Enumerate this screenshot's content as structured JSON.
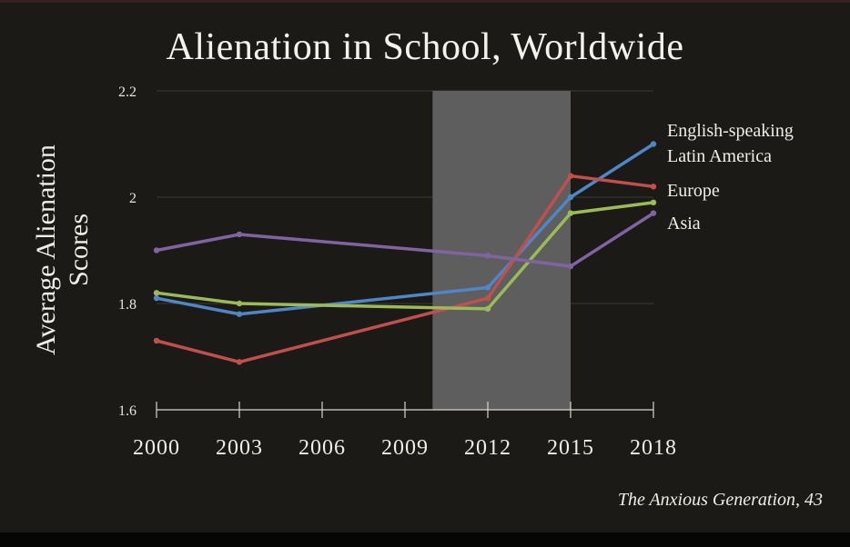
{
  "chart_data": {
    "type": "line",
    "title": "Alienation in School, Worldwide",
    "ylabel": "Average Alienation Scores",
    "xlabel": "",
    "x": [
      2000,
      2003,
      2006,
      2009,
      2012,
      2015,
      2018
    ],
    "x_tick_labels": [
      "2000",
      "2003",
      "2006",
      "2009",
      "2012",
      "2015",
      "2018"
    ],
    "ylim": [
      1.6,
      2.2
    ],
    "y_ticks": [
      1.6,
      1.8,
      2.0,
      2.2
    ],
    "y_tick_labels": [
      "1.6",
      "1.8",
      "2",
      "2.2"
    ],
    "grid": "horizontal",
    "highlight_range": [
      2010,
      2015
    ],
    "highlight_color": "#5e5e5e",
    "series": [
      {
        "name": "English-speaking",
        "color": "#4f86c6",
        "points": [
          [
            2000,
            1.81
          ],
          [
            2003,
            1.78
          ],
          [
            2012,
            1.83
          ],
          [
            2015,
            2.0
          ],
          [
            2018,
            2.1
          ]
        ]
      },
      {
        "name": "Latin America",
        "color": "#c0504d",
        "points": [
          [
            2000,
            1.73
          ],
          [
            2003,
            1.69
          ],
          [
            2012,
            1.81
          ],
          [
            2015,
            2.04
          ],
          [
            2018,
            2.02
          ]
        ]
      },
      {
        "name": "Europe",
        "color": "#9bbb59",
        "points": [
          [
            2000,
            1.82
          ],
          [
            2003,
            1.8
          ],
          [
            2012,
            1.79
          ],
          [
            2015,
            1.97
          ],
          [
            2018,
            1.99
          ]
        ]
      },
      {
        "name": "Asia",
        "color": "#8064a2",
        "points": [
          [
            2000,
            1.9
          ],
          [
            2003,
            1.93
          ],
          [
            2012,
            1.89
          ],
          [
            2015,
            1.87
          ],
          [
            2018,
            1.97
          ]
        ]
      }
    ],
    "legend_labels": [
      "English-speaking",
      "Latin America",
      "Europe",
      "Asia"
    ],
    "legend": "right, labels stacked next to line ends"
  },
  "caption": "The Anxious Generation, 43"
}
